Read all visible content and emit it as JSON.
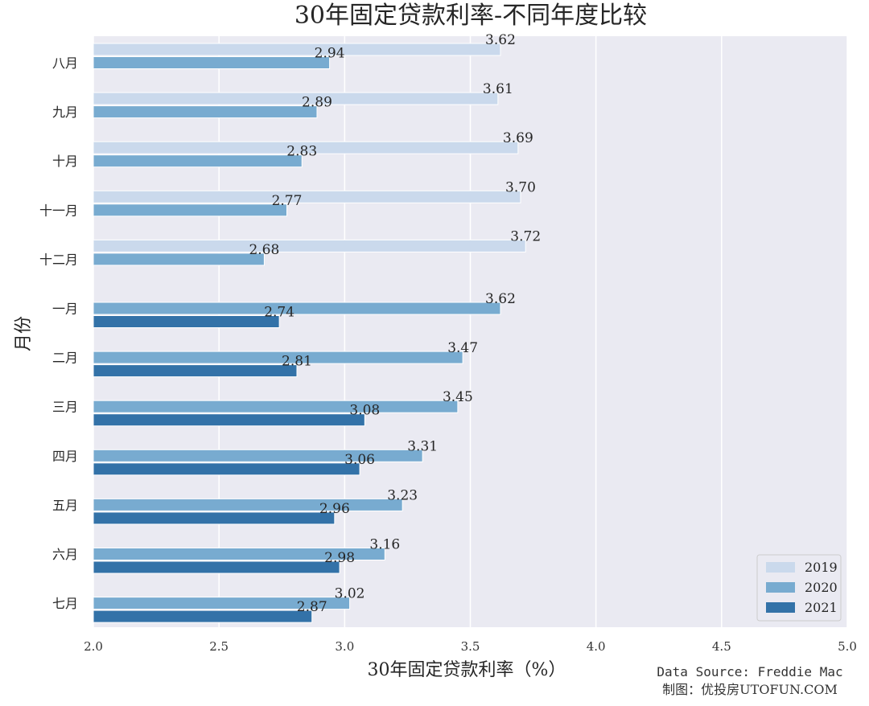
{
  "chart_data": {
    "type": "bar",
    "orientation": "horizontal",
    "title": "30年固定贷款利率-不同年度比较",
    "xlabel": "30年固定贷款利率（%）",
    "ylabel": "月份",
    "xlim": [
      2.0,
      5.0
    ],
    "xticks": [
      "2.0",
      "2.5",
      "3.0",
      "3.5",
      "4.0",
      "4.5",
      "5.0"
    ],
    "grid": true,
    "legend_position": "bottom-right",
    "categories": [
      "八月",
      "九月",
      "十月",
      "十一月",
      "十二月",
      "一月",
      "二月",
      "三月",
      "四月",
      "五月",
      "六月",
      "七月"
    ],
    "series": [
      {
        "name": "2019",
        "color": "#cad9ec",
        "values": [
          3.62,
          3.61,
          3.69,
          3.7,
          3.72,
          null,
          null,
          null,
          null,
          null,
          null,
          null
        ]
      },
      {
        "name": "2020",
        "color": "#78abd0",
        "values": [
          2.94,
          2.89,
          2.83,
          2.77,
          2.68,
          3.62,
          3.47,
          3.45,
          3.31,
          3.23,
          3.16,
          3.02
        ]
      },
      {
        "name": "2021",
        "color": "#3372a8",
        "values": [
          null,
          null,
          null,
          null,
          null,
          2.74,
          2.81,
          3.08,
          3.06,
          2.96,
          2.98,
          2.87
        ]
      }
    ],
    "source_lines": [
      "Data Source: Freddie Mac",
      "制图：优投房UTOFUN.COM"
    ]
  }
}
